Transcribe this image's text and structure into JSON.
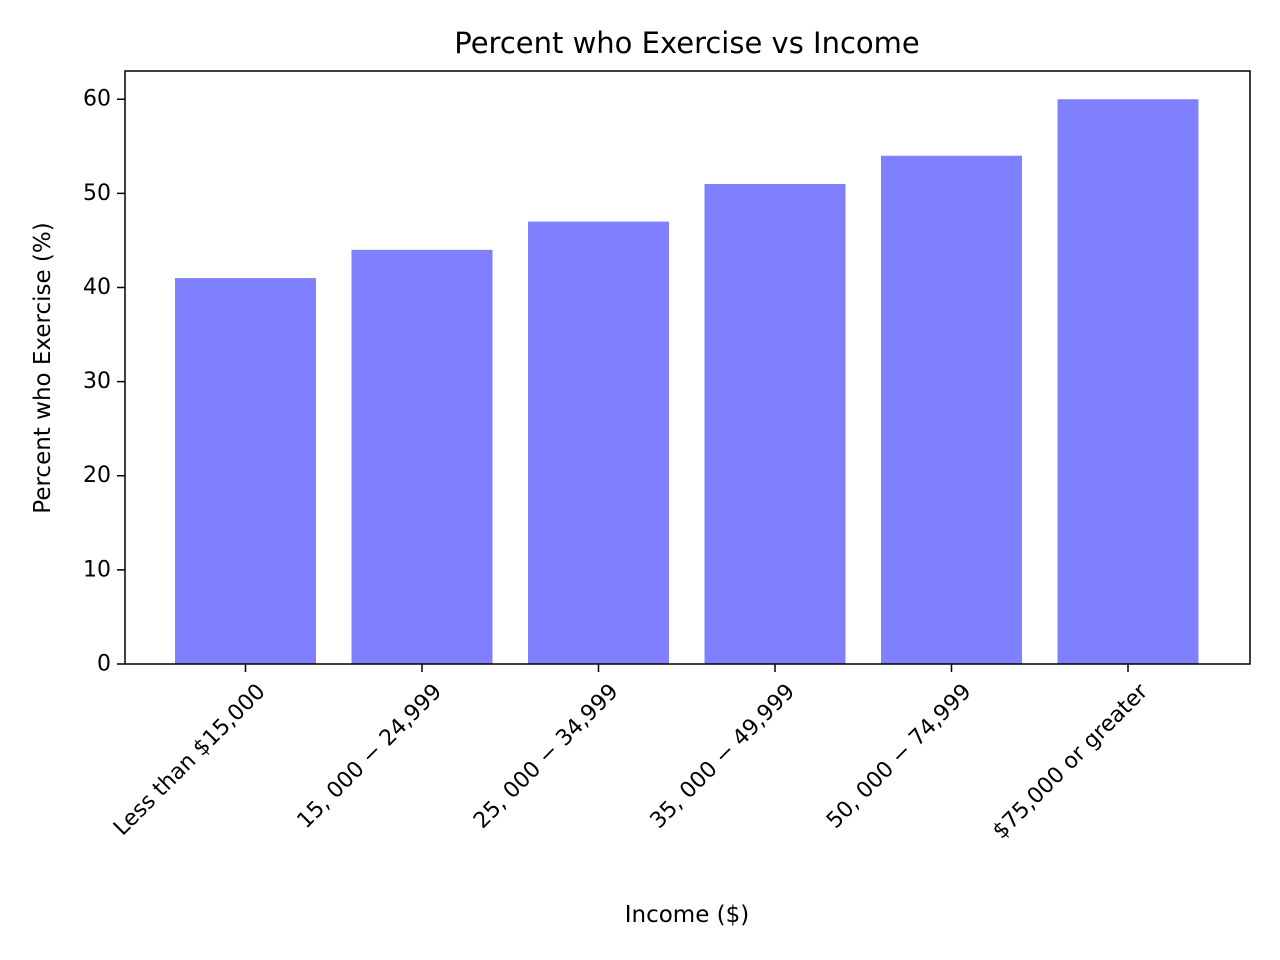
{
  "chart_data": {
    "type": "bar",
    "title": "Percent who Exercise vs Income",
    "xlabel": "Income ($)",
    "ylabel": "Percent who Exercise (%)",
    "categories": [
      "Less than $15,000",
      "15, 000 − 24,999",
      "25, 000 − 34,999",
      "35, 000 − 49,999",
      "50, 000 − 74,999",
      "$75,000 or greater"
    ],
    "values": [
      41,
      44,
      47,
      51,
      54,
      60
    ],
    "ylim": [
      0,
      63
    ],
    "yticks": [
      "0",
      "10",
      "20",
      "30",
      "40",
      "50",
      "60"
    ],
    "bar_color": "#8080ff",
    "grid": false,
    "legend": "none"
  }
}
